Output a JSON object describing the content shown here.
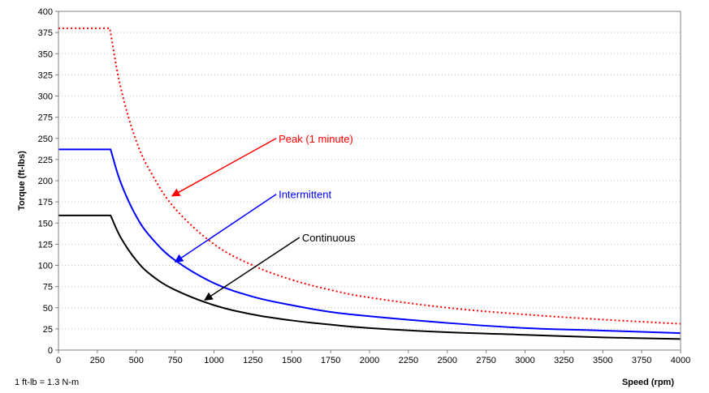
{
  "chart_data": {
    "type": "line",
    "title": "",
    "xlabel": "Speed (rpm)",
    "ylabel": "Torque (ft-lbs)",
    "xlim": [
      0,
      4000
    ],
    "ylim": [
      0,
      400
    ],
    "xticks": [
      0,
      250,
      500,
      750,
      1000,
      1250,
      1500,
      1750,
      2000,
      2250,
      2500,
      2750,
      3000,
      3250,
      3500,
      3750,
      4000
    ],
    "yticks": [
      0,
      25,
      50,
      75,
      100,
      125,
      150,
      175,
      200,
      225,
      250,
      275,
      300,
      325,
      350,
      375,
      400
    ],
    "grid": {
      "horizontal": true,
      "vertical": false,
      "style": "dotted"
    },
    "footnote": "1 ft-lb = 1.3 N-m",
    "series": [
      {
        "name": "Peak (1 minute)",
        "color": "#ff0000",
        "dash": "dotted",
        "points": [
          [
            0,
            380
          ],
          [
            330,
            380
          ],
          [
            400,
            310
          ],
          [
            500,
            247
          ],
          [
            600,
            208
          ],
          [
            750,
            167
          ],
          [
            1000,
            125
          ],
          [
            1250,
            100
          ],
          [
            1500,
            83
          ],
          [
            1750,
            71
          ],
          [
            2000,
            62
          ],
          [
            2500,
            50
          ],
          [
            3000,
            42
          ],
          [
            3500,
            36
          ],
          [
            4000,
            31
          ]
        ]
      },
      {
        "name": "Intermittent",
        "color": "#0000ff",
        "dash": "solid",
        "points": [
          [
            0,
            237
          ],
          [
            335,
            237
          ],
          [
            400,
            198
          ],
          [
            500,
            158
          ],
          [
            600,
            132
          ],
          [
            750,
            106
          ],
          [
            1000,
            79
          ],
          [
            1250,
            63
          ],
          [
            1500,
            53
          ],
          [
            1750,
            45
          ],
          [
            2000,
            40
          ],
          [
            2500,
            32
          ],
          [
            3000,
            26
          ],
          [
            3500,
            23
          ],
          [
            4000,
            20
          ]
        ]
      },
      {
        "name": "Continuous",
        "color": "#000000",
        "dash": "solid",
        "points": [
          [
            0,
            159
          ],
          [
            335,
            159
          ],
          [
            400,
            133
          ],
          [
            500,
            106
          ],
          [
            600,
            88
          ],
          [
            750,
            71
          ],
          [
            1000,
            53
          ],
          [
            1250,
            42
          ],
          [
            1500,
            35
          ],
          [
            1750,
            30
          ],
          [
            2000,
            26
          ],
          [
            2500,
            21
          ],
          [
            3000,
            18
          ],
          [
            3500,
            15
          ],
          [
            4000,
            13
          ]
        ]
      }
    ],
    "annotations": [
      {
        "text": "Peak (1 minute)",
        "color": "#ff0000",
        "arrow_from": [
          1400,
          250
        ],
        "arrow_to": [
          730,
          182
        ]
      },
      {
        "text": "Intermittent",
        "color": "#0000ff",
        "arrow_from": [
          1400,
          184
        ],
        "arrow_to": [
          750,
          104
        ]
      },
      {
        "text": "Continuous",
        "color": "#000000",
        "arrow_from": [
          1550,
          133
        ],
        "arrow_to": [
          940,
          59
        ]
      }
    ]
  }
}
